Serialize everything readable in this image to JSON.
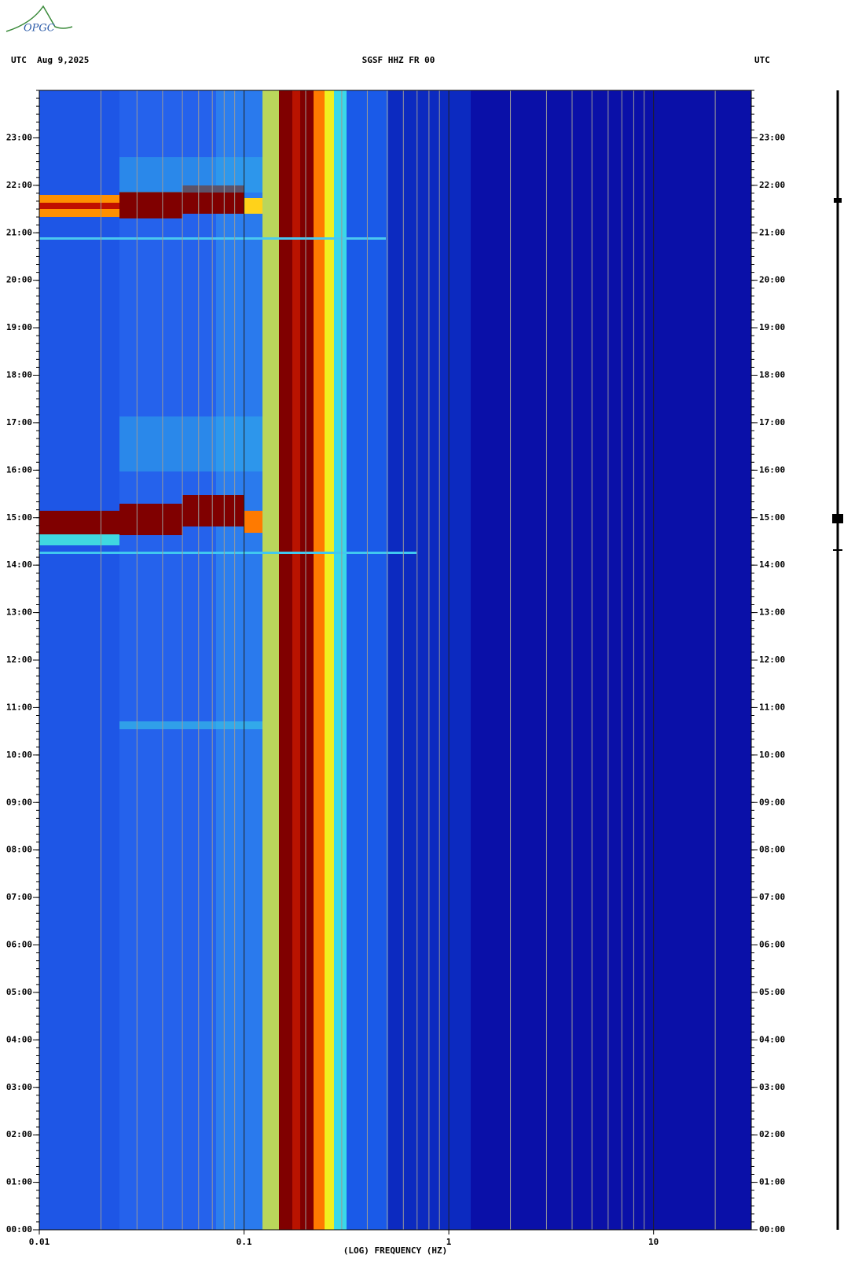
{
  "header": {
    "logo": "OPGC",
    "left": "UTC  Aug 9,2025",
    "title": "SGSF HHZ FR 00",
    "right": "UTC"
  },
  "chart_data": {
    "type": "spectrogram",
    "xlabel": "(LOG) FREQUENCY (HZ)",
    "xscale": "log",
    "xlim": [
      0.01,
      30
    ],
    "xticks": [
      0.01,
      0.1,
      1,
      10
    ],
    "ylim": [
      0,
      24
    ],
    "yticks": [
      {
        "value": 0,
        "label": "00:00"
      },
      {
        "value": 1,
        "label": "01:00"
      },
      {
        "value": 2,
        "label": "02:00"
      },
      {
        "value": 3,
        "label": "03:00"
      },
      {
        "value": 4,
        "label": "04:00"
      },
      {
        "value": 5,
        "label": "05:00"
      },
      {
        "value": 6,
        "label": "06:00"
      },
      {
        "value": 7,
        "label": "07:00"
      },
      {
        "value": 8,
        "label": "08:00"
      },
      {
        "value": 9,
        "label": "09:00"
      },
      {
        "value": 10,
        "label": "10:00"
      },
      {
        "value": 11,
        "label": "11:00"
      },
      {
        "value": 12,
        "label": "12:00"
      },
      {
        "value": 13,
        "label": "13:00"
      },
      {
        "value": 14,
        "label": "14:00"
      },
      {
        "value": 15,
        "label": "15:00"
      },
      {
        "value": 16,
        "label": "16:00"
      },
      {
        "value": 17,
        "label": "17:00"
      },
      {
        "value": 18,
        "label": "18:00"
      },
      {
        "value": 19,
        "label": "19:00"
      },
      {
        "value": 20,
        "label": "20:00"
      },
      {
        "value": 21,
        "label": "21:00"
      },
      {
        "value": 22,
        "label": "22:00"
      },
      {
        "value": 23,
        "label": "23:00"
      }
    ]
  }
}
